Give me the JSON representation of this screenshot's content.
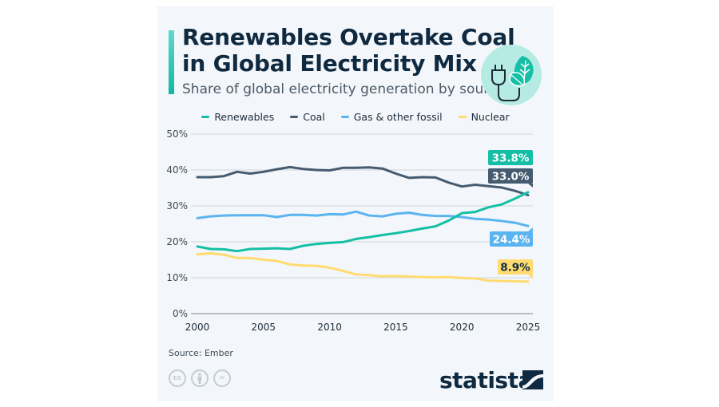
{
  "title_line1": "Renewables Overtake Coal",
  "title_line2": "in Global Electricity Mix",
  "subtitle": "Share of global electricity generation by source",
  "header_icon": "plug-and-leaf-icon",
  "source": "Source: Ember",
  "brand": "statista",
  "license_icons": [
    "cc-icon",
    "attribution-icon",
    "no-derivatives-icon"
  ],
  "license_labels": [
    "cc",
    "",
    "="
  ],
  "colors": {
    "renewables": "#14bfa6",
    "coal": "#455b70",
    "gas": "#5ab4f0",
    "nuclear": "#ffdb70",
    "background": "#f3f6fa",
    "title": "#0f2a40"
  },
  "chart_data": {
    "type": "line",
    "title": "Renewables Overtake Coal in Global Electricity Mix",
    "subtitle": "Share of global electricity generation by source",
    "xlabel": "",
    "ylabel": "",
    "x": [
      2000,
      2001,
      2002,
      2003,
      2004,
      2005,
      2006,
      2007,
      2008,
      2009,
      2010,
      2011,
      2012,
      2013,
      2014,
      2015,
      2016,
      2017,
      2018,
      2019,
      2020,
      2021,
      2022,
      2023,
      2024,
      2025
    ],
    "xticks": [
      "2000",
      "2005",
      "2010",
      "2015",
      "2020",
      "2025"
    ],
    "xtick_values": [
      2000,
      2005,
      2010,
      2015,
      2020,
      2025
    ],
    "yticks": [
      "0%",
      "10%",
      "20%",
      "30%",
      "40%",
      "50%"
    ],
    "ytick_values": [
      0,
      10,
      20,
      30,
      40,
      50
    ],
    "ylim": [
      0,
      50
    ],
    "xlim": [
      2000,
      2025
    ],
    "grid": true,
    "legend_position": "top-center",
    "series": [
      {
        "key": "renewables",
        "name": "Renewables",
        "end_label": "33.8%",
        "values": [
          18.7,
          18.0,
          17.9,
          17.4,
          18.0,
          18.1,
          18.2,
          18.0,
          18.9,
          19.4,
          19.7,
          19.9,
          20.8,
          21.3,
          21.9,
          22.4,
          23.0,
          23.7,
          24.3,
          25.9,
          28.0,
          28.3,
          29.6,
          30.4,
          32.0,
          33.8
        ]
      },
      {
        "key": "coal",
        "name": "Coal",
        "end_label": "33.0%",
        "values": [
          38.0,
          38.0,
          38.3,
          39.5,
          39.0,
          39.5,
          40.2,
          40.8,
          40.3,
          40.0,
          39.9,
          40.6,
          40.6,
          40.7,
          40.4,
          39.0,
          37.8,
          38.0,
          37.9,
          36.5,
          35.4,
          35.9,
          35.5,
          35.1,
          34.2,
          33.0
        ]
      },
      {
        "key": "gas",
        "name": "Gas & other fossil",
        "end_label": "24.4%",
        "values": [
          26.6,
          27.1,
          27.3,
          27.4,
          27.4,
          27.4,
          26.9,
          27.5,
          27.5,
          27.3,
          27.7,
          27.6,
          28.4,
          27.3,
          27.1,
          27.8,
          28.1,
          27.5,
          27.2,
          27.2,
          26.9,
          26.4,
          26.2,
          25.8,
          25.3,
          24.4
        ]
      },
      {
        "key": "nuclear",
        "name": "Nuclear",
        "end_label": "8.9%",
        "values": [
          16.5,
          16.8,
          16.4,
          15.5,
          15.5,
          15.0,
          14.7,
          13.7,
          13.4,
          13.3,
          12.8,
          11.9,
          10.9,
          10.7,
          10.4,
          10.5,
          10.3,
          10.2,
          10.1,
          10.2,
          9.9,
          9.8,
          9.2,
          9.1,
          9.0,
          8.9
        ]
      }
    ]
  }
}
